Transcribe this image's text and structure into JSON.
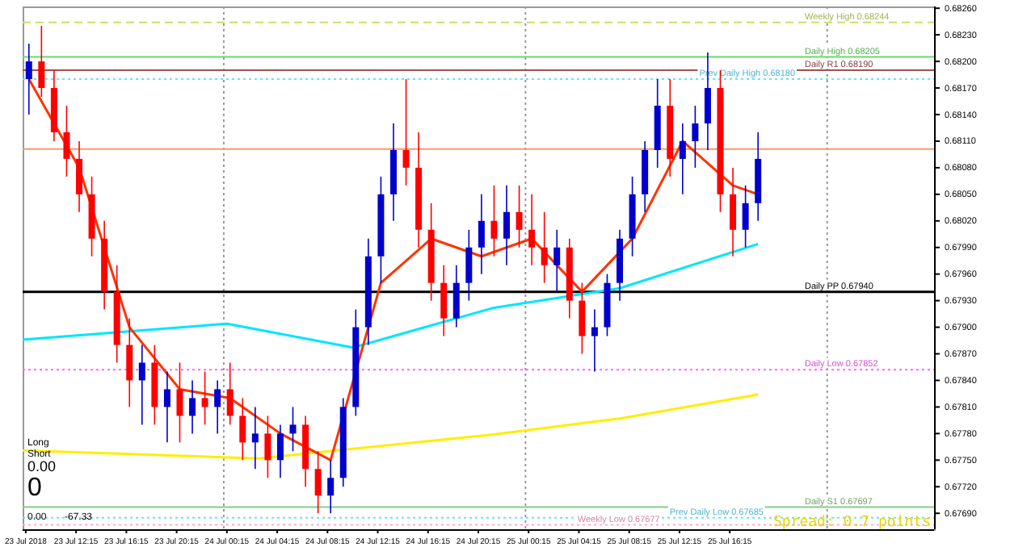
{
  "chart_data": {
    "type": "candlestick",
    "x": [
      "2018-07-23T08:30",
      "2018-07-23T09:30",
      "2018-07-23T10:30",
      "2018-07-23T11:30",
      "2018-07-23T12:30",
      "2018-07-23T13:30",
      "2018-07-23T14:30",
      "2018-07-23T15:30",
      "2018-07-23T16:30",
      "2018-07-23T17:30",
      "2018-07-23T18:30",
      "2018-07-23T19:30",
      "2018-07-23T20:30",
      "2018-07-23T21:30",
      "2018-07-23T22:30",
      "2018-07-23T23:30",
      "2018-07-24T00:30",
      "2018-07-24T01:30",
      "2018-07-24T02:30",
      "2018-07-24T03:30",
      "2018-07-24T04:30",
      "2018-07-24T05:30",
      "2018-07-24T06:30",
      "2018-07-24T07:30",
      "2018-07-24T08:30",
      "2018-07-24T09:30",
      "2018-07-24T10:30",
      "2018-07-24T11:30",
      "2018-07-24T12:30",
      "2018-07-24T13:30",
      "2018-07-24T14:30",
      "2018-07-24T15:30",
      "2018-07-24T16:30",
      "2018-07-24T17:30",
      "2018-07-24T18:30",
      "2018-07-24T19:30",
      "2018-07-24T20:30",
      "2018-07-24T21:30",
      "2018-07-24T22:30",
      "2018-07-24T23:30",
      "2018-07-25T00:30",
      "2018-07-25T01:30",
      "2018-07-25T02:30",
      "2018-07-25T03:30",
      "2018-07-25T04:30",
      "2018-07-25T05:30",
      "2018-07-25T06:30",
      "2018-07-25T07:30",
      "2018-07-25T08:30",
      "2018-07-25T09:30",
      "2018-07-25T10:30",
      "2018-07-25T11:30",
      "2018-07-25T12:30",
      "2018-07-25T13:30",
      "2018-07-25T14:30",
      "2018-07-25T15:30",
      "2018-07-25T16:30",
      "2018-07-25T17:30",
      "2018-07-25T18:30"
    ],
    "ohlc": [
      [
        0.6818,
        0.6822,
        0.6814,
        0.682
      ],
      [
        0.682,
        0.6824,
        0.6816,
        0.6817
      ],
      [
        0.6817,
        0.6819,
        0.6811,
        0.6812
      ],
      [
        0.6812,
        0.6815,
        0.6807,
        0.6809
      ],
      [
        0.6809,
        0.6811,
        0.6803,
        0.6805
      ],
      [
        0.6805,
        0.6807,
        0.6798,
        0.68
      ],
      [
        0.68,
        0.6802,
        0.6792,
        0.6794
      ],
      [
        0.6794,
        0.6797,
        0.6786,
        0.6788
      ],
      [
        0.6788,
        0.6791,
        0.6781,
        0.6784
      ],
      [
        0.6784,
        0.6788,
        0.6779,
        0.6786
      ],
      [
        0.6786,
        0.6788,
        0.6779,
        0.6781
      ],
      [
        0.6781,
        0.6785,
        0.6777,
        0.6783
      ],
      [
        0.6783,
        0.6786,
        0.6777,
        0.678
      ],
      [
        0.678,
        0.6784,
        0.6778,
        0.6782
      ],
      [
        0.6782,
        0.6785,
        0.6779,
        0.6781
      ],
      [
        0.6781,
        0.6784,
        0.6778,
        0.6783
      ],
      [
        0.6783,
        0.6786,
        0.6779,
        0.678
      ],
      [
        0.678,
        0.6782,
        0.6775,
        0.6777
      ],
      [
        0.6777,
        0.6781,
        0.6774,
        0.6778
      ],
      [
        0.6778,
        0.678,
        0.6773,
        0.6775
      ],
      [
        0.6775,
        0.6779,
        0.6773,
        0.6778
      ],
      [
        0.6778,
        0.6781,
        0.6776,
        0.6779
      ],
      [
        0.6779,
        0.678,
        0.6772,
        0.6774
      ],
      [
        0.6774,
        0.6776,
        0.6769,
        0.6771
      ],
      [
        0.6771,
        0.6775,
        0.6769,
        0.6773
      ],
      [
        0.6773,
        0.6782,
        0.6772,
        0.6781
      ],
      [
        0.6781,
        0.6792,
        0.678,
        0.679
      ],
      [
        0.679,
        0.68,
        0.6788,
        0.6798
      ],
      [
        0.6798,
        0.6807,
        0.6795,
        0.6805
      ],
      [
        0.6805,
        0.6813,
        0.6802,
        0.681
      ],
      [
        0.681,
        0.6818,
        0.6806,
        0.6808
      ],
      [
        0.6808,
        0.6812,
        0.6799,
        0.6801
      ],
      [
        0.6801,
        0.6804,
        0.6793,
        0.6795
      ],
      [
        0.6795,
        0.6797,
        0.6789,
        0.6791
      ],
      [
        0.6791,
        0.6797,
        0.679,
        0.6795
      ],
      [
        0.6795,
        0.6801,
        0.6793,
        0.6799
      ],
      [
        0.6799,
        0.6805,
        0.6796,
        0.6802
      ],
      [
        0.6802,
        0.6806,
        0.6798,
        0.68
      ],
      [
        0.68,
        0.6806,
        0.6797,
        0.6803
      ],
      [
        0.6803,
        0.6806,
        0.6799,
        0.6801
      ],
      [
        0.6801,
        0.6805,
        0.6797,
        0.6799
      ],
      [
        0.6799,
        0.6803,
        0.6795,
        0.6797
      ],
      [
        0.6797,
        0.6801,
        0.6794,
        0.6799
      ],
      [
        0.6799,
        0.68,
        0.6791,
        0.6793
      ],
      [
        0.6793,
        0.6795,
        0.6787,
        0.6789
      ],
      [
        0.6789,
        0.6792,
        0.6785,
        0.679
      ],
      [
        0.679,
        0.6796,
        0.6789,
        0.6795
      ],
      [
        0.6795,
        0.6801,
        0.6793,
        0.68
      ],
      [
        0.68,
        0.6807,
        0.6798,
        0.6805
      ],
      [
        0.6805,
        0.6811,
        0.6803,
        0.681
      ],
      [
        0.681,
        0.6818,
        0.6808,
        0.6815
      ],
      [
        0.6815,
        0.6818,
        0.6807,
        0.6809
      ],
      [
        0.6809,
        0.6813,
        0.6805,
        0.6811
      ],
      [
        0.6811,
        0.6815,
        0.6808,
        0.6813
      ],
      [
        0.6813,
        0.6821,
        0.681,
        0.6817
      ],
      [
        0.6817,
        0.6819,
        0.6803,
        0.6805
      ],
      [
        0.6805,
        0.6808,
        0.6798,
        0.6801
      ],
      [
        0.6801,
        0.6806,
        0.6799,
        0.6804
      ],
      [
        0.6804,
        0.6812,
        0.6802,
        0.6809
      ]
    ],
    "colors": [
      "#0000cc",
      "#ff0000",
      "#ff0000",
      "#ff0000",
      "#ff0000",
      "#ff0000",
      "#ff0000",
      "#ff0000",
      "#ff0000",
      "#0000cc",
      "#ff0000",
      "#0000cc",
      "#ff0000",
      "#0000cc",
      "#ff0000",
      "#0000cc",
      "#ff0000",
      "#ff0000",
      "#0000cc",
      "#ff0000",
      "#0000cc",
      "#0000cc",
      "#ff0000",
      "#ff0000",
      "#0000cc",
      "#0000cc",
      "#0000cc",
      "#0000cc",
      "#0000cc",
      "#0000cc",
      "#ff0000",
      "#ff0000",
      "#ff0000",
      "#ff0000",
      "#0000cc",
      "#0000cc",
      "#0000cc",
      "#ff0000",
      "#0000cc",
      "#ff0000",
      "#ff0000",
      "#ff0000",
      "#0000cc",
      "#ff0000",
      "#ff0000",
      "#0000cc",
      "#0000cc",
      "#0000cc",
      "#0000cc",
      "#0000cc",
      "#0000cc",
      "#ff0000",
      "#0000cc",
      "#0000cc",
      "#0000cc",
      "#ff0000",
      "#ff0000",
      "#0000cc",
      "#0000cc"
    ],
    "series": [
      {
        "type": "line",
        "color": "#ffee00",
        "x": [
          "2018-07-23T08:00",
          "2018-07-24T02:45",
          "2018-07-24T21:30",
          "2018-07-25T07:30",
          "2018-07-25T18:30"
        ],
        "values": [
          0.67761,
          0.67752,
          0.67779,
          0.67797,
          0.67824
        ]
      },
      {
        "type": "line",
        "color": "#00e5ff",
        "x": [
          "2018-07-23T08:00",
          "2018-07-24T00:15",
          "2018-07-24T10:15",
          "2018-07-24T21:30",
          "2018-07-25T07:30",
          "2018-07-25T18:30"
        ],
        "values": [
          0.67886,
          0.67904,
          0.67877,
          0.67922,
          0.67944,
          0.67994
        ]
      },
      {
        "type": "line",
        "color": "#ff3300",
        "x": [
          "2018-07-23T08:30",
          "2018-07-23T12:30",
          "2018-07-23T16:30",
          "2018-07-23T20:30",
          "2018-07-24T00:30",
          "2018-07-24T04:30",
          "2018-07-24T08:30",
          "2018-07-24T12:30",
          "2018-07-24T16:30",
          "2018-07-24T20:30",
          "2018-07-25T00:30",
          "2018-07-25T04:30",
          "2018-07-25T08:30",
          "2018-07-25T12:30",
          "2018-07-25T16:30",
          "2018-07-25T18:30"
        ],
        "values": [
          0.6818,
          0.6808,
          0.679,
          0.6783,
          0.6782,
          0.6778,
          0.6775,
          0.6795,
          0.68,
          0.6798,
          0.68,
          0.6794,
          0.68,
          0.6811,
          0.6806,
          0.6805
        ]
      }
    ],
    "xlim": [
      "2018-07-23T08:00",
      "2018-07-26T08:30"
    ],
    "xticks": [
      {
        "value": "2018-07-23T08:15",
        "label": "23 Jul 2018"
      },
      {
        "value": "2018-07-23T12:15",
        "label": "23 Jul 12:15"
      },
      {
        "value": "2018-07-23T16:15",
        "label": "23 Jul 16:15"
      },
      {
        "value": "2018-07-23T20:15",
        "label": "23 Jul 20:15"
      },
      {
        "value": "2018-07-24T00:15",
        "label": "24 Jul 00:15"
      },
      {
        "value": "2018-07-24T04:15",
        "label": "24 Jul 04:15"
      },
      {
        "value": "2018-07-24T08:15",
        "label": "24 Jul 08:15"
      },
      {
        "value": "2018-07-24T12:15",
        "label": "24 Jul 12:15"
      },
      {
        "value": "2018-07-24T16:15",
        "label": "24 Jul 16:15"
      },
      {
        "value": "2018-07-24T20:15",
        "label": "24 Jul 20:15"
      },
      {
        "value": "2018-07-25T00:15",
        "label": "25 Jul 00:15"
      },
      {
        "value": "2018-07-25T04:15",
        "label": "25 Jul 04:15"
      },
      {
        "value": "2018-07-25T08:15",
        "label": "25 Jul 08:15"
      },
      {
        "value": "2018-07-25T12:15",
        "label": "25 Jul 12:15"
      },
      {
        "value": "2018-07-25T16:15",
        "label": "25 Jul 16:15"
      }
    ],
    "ylim": [
      0.67672,
      0.68262
    ],
    "yticks": [
      {
        "value": 0.6769,
        "label": "0.67690"
      },
      {
        "value": 0.6772,
        "label": "0.67720"
      },
      {
        "value": 0.6775,
        "label": "0.67750"
      },
      {
        "value": 0.6778,
        "label": "0.67780"
      },
      {
        "value": 0.6781,
        "label": "0.67810"
      },
      {
        "value": 0.6784,
        "label": "0.67840"
      },
      {
        "value": 0.6787,
        "label": "0.67870"
      },
      {
        "value": 0.679,
        "label": "0.67900"
      },
      {
        "value": 0.6793,
        "label": "0.67930"
      },
      {
        "value": 0.6796,
        "label": "0.67960"
      },
      {
        "value": 0.6799,
        "label": "0.67990"
      },
      {
        "value": 0.6802,
        "label": "0.68020"
      },
      {
        "value": 0.6805,
        "label": "0.68050"
      },
      {
        "value": 0.6808,
        "label": "0.68080"
      },
      {
        "value": 0.6811,
        "label": "0.68110"
      },
      {
        "value": 0.6814,
        "label": "0.68140"
      },
      {
        "value": 0.6817,
        "label": "0.68170"
      },
      {
        "value": 0.682,
        "label": "0.68200"
      },
      {
        "value": 0.6823,
        "label": "0.68230"
      },
      {
        "value": 0.6826,
        "label": "0.68260"
      }
    ],
    "ref_lines": [
      {
        "axis": "x",
        "value": "2018-07-24T00:00",
        "color": "#999999",
        "line_style": "dotted"
      },
      {
        "axis": "x",
        "value": "2018-07-25T00:00",
        "color": "#999999",
        "line_style": "dotted"
      },
      {
        "axis": "x",
        "value": "2018-07-26T00:00",
        "color": "#999999",
        "line_style": "dotted"
      },
      {
        "axis": "y",
        "value": 0.68101,
        "color": "#ff9966",
        "line_style": "solid"
      },
      {
        "axis": "y",
        "value": 0.6794,
        "label": "Daily PP 0.67940",
        "color": "#000000",
        "line_style": "solid"
      },
      {
        "axis": "y",
        "value": 0.6819,
        "label": "Daily R1 0.68190",
        "color": "#a05050",
        "line_style": "solid"
      },
      {
        "axis": "y",
        "value": 0.68205,
        "label": "Daily High 0.68205",
        "color": "#66dd66",
        "line_style": "solid"
      },
      {
        "axis": "y",
        "value": 0.68244,
        "label": "Weekly High 0.68244",
        "color": "#ccdd66",
        "line_style": "dashed"
      },
      {
        "axis": "y",
        "value": 0.6818,
        "label": "Prev Daily High 0.68180",
        "color": "#66e0ff",
        "line_style": "dotted"
      },
      {
        "axis": "y",
        "value": 0.67852,
        "label": "Daily Low 0.67852",
        "color": "#ff66ff",
        "line_style": "dotted"
      },
      {
        "axis": "y",
        "value": 0.67697,
        "label": "Daily S1 0.67697",
        "color": "#88cc88",
        "line_style": "solid"
      },
      {
        "axis": "y",
        "value": 0.67685,
        "label": "Prev Daily Low 0.67685",
        "color": "#66e0ff",
        "line_style": "dotted"
      },
      {
        "axis": "y",
        "value": 0.67677,
        "label": "Weekly Low 0.67677",
        "color": "#ffaacc",
        "line_style": "dotted"
      }
    ],
    "annotations": [
      "Spread: 0.7 points",
      "Long",
      "Short",
      "0.00",
      "0",
      "0.00",
      "-67.33"
    ],
    "grid": false
  }
}
